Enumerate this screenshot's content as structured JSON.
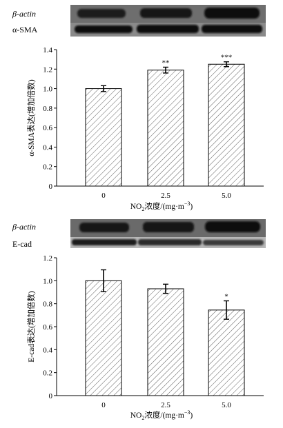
{
  "chart_data": [
    {
      "type": "bar",
      "blot_labels": [
        "β-actin",
        "α-SMA"
      ],
      "categories": [
        "0",
        "2.5",
        "5.0"
      ],
      "values": [
        1.0,
        1.19,
        1.25
      ],
      "errors": [
        0.03,
        0.03,
        0.025
      ],
      "significance": [
        "",
        "**",
        "***"
      ],
      "ylabel": "α-SMA表达(增加倍数)",
      "xlabel": {
        "pre": "NO",
        "sub": "2",
        "mid": "浓度/(mg·m",
        "sup": "−3",
        "post": ")"
      },
      "ylim": [
        0,
        1.4
      ],
      "yticks": [
        "0",
        "0.2",
        "0.4",
        "0.6",
        "0.8",
        "1.0",
        "1.2",
        "1.4"
      ],
      "bar_fill": "diagonal-hatch",
      "grid": false
    },
    {
      "type": "bar",
      "blot_labels": [
        "β-actin",
        "E-cad"
      ],
      "categories": [
        "0",
        "2.5",
        "5.0"
      ],
      "values": [
        1.0,
        0.93,
        0.745
      ],
      "errors": [
        0.095,
        0.04,
        0.08
      ],
      "significance": [
        "",
        "",
        "*"
      ],
      "ylabel": "E-cad表达(增加倍数)",
      "xlabel": {
        "pre": "NO",
        "sub": "2",
        "mid": "浓度/(mg·m",
        "sup": "−3",
        "post": ")"
      },
      "ylim": [
        0,
        1.2
      ],
      "yticks": [
        "0",
        "0.2",
        "0.4",
        "0.6",
        "0.8",
        "1.0",
        "1.2"
      ],
      "bar_fill": "diagonal-hatch",
      "grid": false
    }
  ]
}
